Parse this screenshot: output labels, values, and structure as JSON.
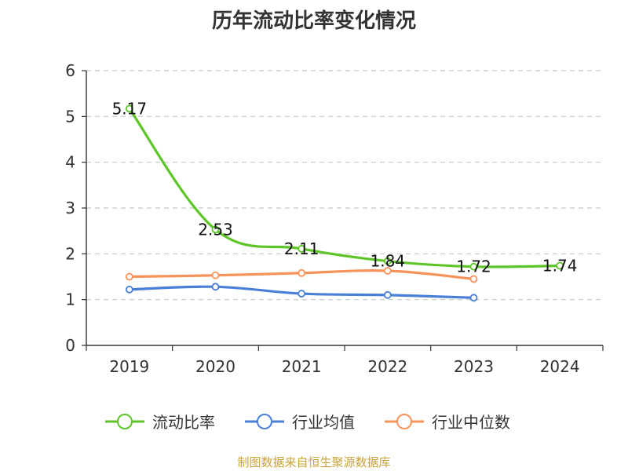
{
  "chart_data": {
    "type": "line",
    "title": "历年流动比率变化情况",
    "categories": [
      "2019",
      "2020",
      "2021",
      "2022",
      "2023",
      "2024"
    ],
    "ylim": [
      0,
      6
    ],
    "yticks": [
      0,
      1,
      2,
      3,
      4,
      5,
      6
    ],
    "grid": true,
    "legend_position": "bottom",
    "series": [
      {
        "name": "流动比率",
        "color": "#5dc528",
        "values": [
          5.17,
          2.53,
          2.11,
          1.84,
          1.72,
          1.74
        ],
        "labels": [
          "5.17",
          "2.53",
          "2.11",
          "1.84",
          "1.72",
          "1.74"
        ]
      },
      {
        "name": "行业均值",
        "color": "#4a7fd7",
        "values": [
          1.22,
          1.28,
          1.13,
          1.1,
          1.04,
          null
        ]
      },
      {
        "name": "行业中位数",
        "color": "#f7935a",
        "values": [
          1.5,
          1.53,
          1.58,
          1.63,
          1.45,
          null
        ]
      }
    ]
  },
  "footer": {
    "source": "制图数据来自恒生聚源数据库"
  }
}
